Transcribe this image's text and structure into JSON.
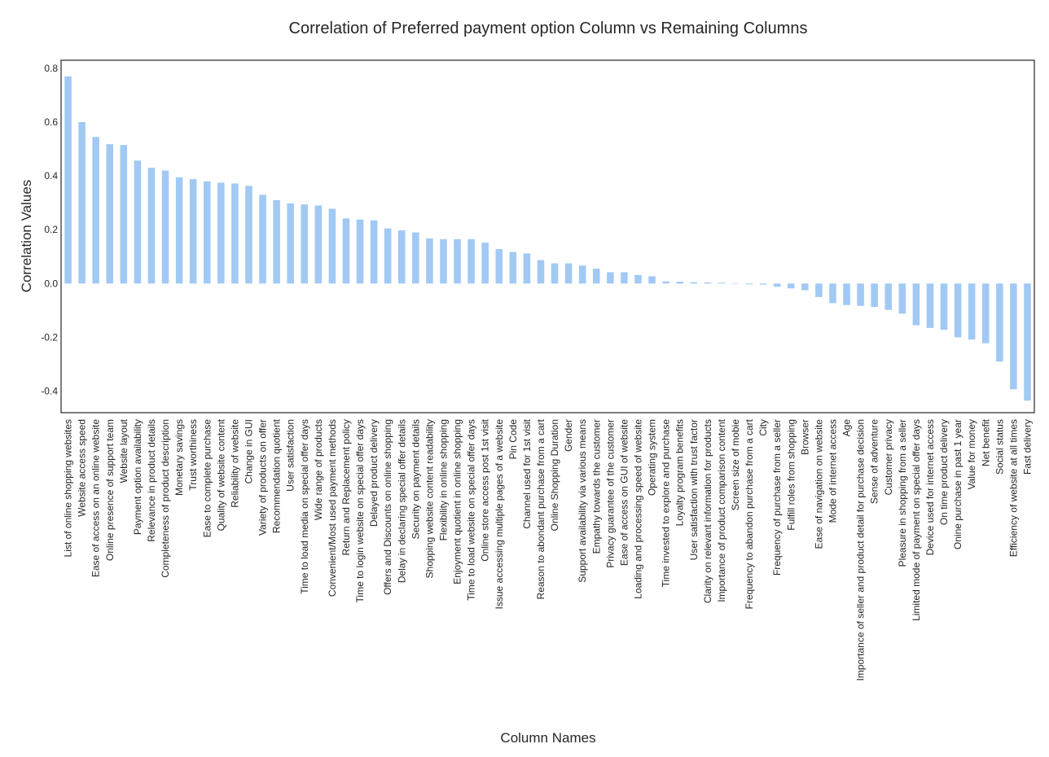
{
  "chart_data": {
    "type": "bar",
    "title": "Correlation of Preferred payment option Column vs Remaining Columns",
    "xlabel": "Column Names",
    "ylabel": "Correlation Values",
    "ylim": [
      -0.48,
      0.83
    ],
    "yticks": [
      -0.4,
      -0.2,
      0.0,
      0.2,
      0.4,
      0.6,
      0.8
    ],
    "ytick_labels": [
      "-0.4",
      "-0.2",
      "0.0",
      "0.2",
      "0.4",
      "0.6",
      "0.8"
    ],
    "grid": false,
    "bar_color": "#a1c9f4",
    "categories": [
      "List of online shopping websites",
      "Website access speed",
      "Ease of access on an online website",
      "Online presence of support team",
      "Website layout",
      "Payment option availability",
      "Relevance in product details",
      "Completeness of product description",
      "Monetary savings",
      "Trust worthiness",
      "Ease to complete purchase",
      "Quality of website content",
      "Reliability of website",
      "Change in GUI",
      "Variety of products on offer",
      "Recommendation quotient",
      "User satisfaction",
      "Time to load media on special offer days",
      "Wide range of products",
      "Convenient/Most used payment methods",
      "Return and Replacement policy",
      "Time to login website on special offer days",
      "Delayed product delivery",
      "Offers and Discounts on online shopping",
      "Delay in declaring special offer details",
      "Security on payment details",
      "Shopping website content readability",
      "Flexibility in online shopping",
      "Enjoyment quotient in online shopping",
      "Time to load website on special offer days",
      "Online store access post 1st visit",
      "Issue accessing multiple pages of a website",
      "Pin Code",
      "Channel used for 1st visit",
      "Reason to abondant purchase from a cart",
      "Online Shopping Duration",
      "Gender",
      "Support availability via various means",
      "Empathy towards the customer",
      "Privacy guarantee of the customer",
      "Ease of access on GUI of website",
      "Loading and processing speed of website",
      "Operating system",
      "Time invested to explore and purchase",
      "Loyalty program benefits",
      "User satisfaction with trust factor",
      "Clarity on relevant information for products",
      "Importance of product comparison content",
      "Screen size of mobie",
      "Frequency to abandon purchase from a cart",
      "City",
      "Frequency of purchase from a seller",
      "Fulfill roles from shopping",
      "Browser",
      "Ease of navigation on website",
      "Mode of internet access",
      "Age",
      "Importance of seller and product detail for purchase decision",
      "Sense of adventure",
      "Customer privacy",
      "Pleasure in shopping from a seller",
      "Limited mode of payment on special offer days",
      "Device used for internet access",
      "On time product delivery",
      "Onine purchase in past 1 year",
      "Value for money",
      "Net benefit",
      "Social status",
      "Efficiency of website at all times",
      "Fast delivery"
    ],
    "values": [
      0.77,
      0.6,
      0.545,
      0.518,
      0.515,
      0.457,
      0.43,
      0.42,
      0.395,
      0.388,
      0.38,
      0.375,
      0.372,
      0.363,
      0.33,
      0.31,
      0.298,
      0.294,
      0.29,
      0.278,
      0.242,
      0.238,
      0.235,
      0.205,
      0.198,
      0.19,
      0.168,
      0.165,
      0.165,
      0.165,
      0.152,
      0.128,
      0.117,
      0.112,
      0.087,
      0.075,
      0.075,
      0.067,
      0.055,
      0.042,
      0.042,
      0.032,
      0.027,
      0.008,
      0.007,
      0.005,
      0.004,
      0.003,
      0.0,
      -0.003,
      -0.004,
      -0.012,
      -0.018,
      -0.025,
      -0.05,
      -0.073,
      -0.08,
      -0.083,
      -0.087,
      -0.098,
      -0.112,
      -0.155,
      -0.165,
      -0.172,
      -0.2,
      -0.208,
      -0.222,
      -0.29,
      -0.393,
      -0.435
    ]
  }
}
